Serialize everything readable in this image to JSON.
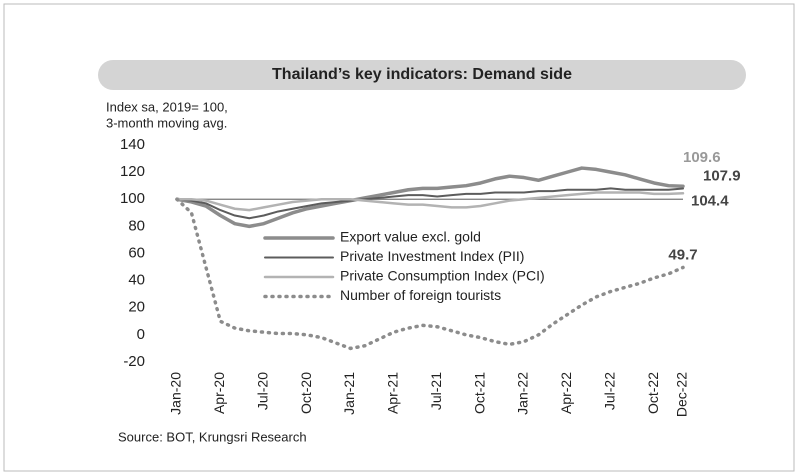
{
  "chart_data": {
    "type": "line",
    "title": "Thailand’s key indicators: Demand side",
    "ylabel": [
      "Index sa, 2019= 100,",
      "3-month moving avg."
    ],
    "source": "Source: BOT, Krungsri Research",
    "categories": [
      "Jan-20",
      null,
      null,
      "Apr-20",
      null,
      null,
      "Jul-20",
      null,
      null,
      "Oct-20",
      null,
      null,
      "Jan-21",
      null,
      null,
      "Apr-21",
      null,
      null,
      "Jul-21",
      null,
      null,
      "Oct-21",
      null,
      null,
      "Jan-22",
      null,
      null,
      "Apr-22",
      null,
      null,
      "Jul-22",
      null,
      null,
      "Oct-22",
      null,
      "Dec-22"
    ],
    "series": [
      {
        "name": "Export value excl. gold",
        "color": "#8c8c8c",
        "style": "solid",
        "values": [
          100,
          98,
          95,
          88,
          82,
          80,
          82,
          86,
          90,
          93,
          95,
          97,
          99,
          101,
          103,
          105,
          107,
          108,
          108,
          109,
          110,
          112,
          115,
          117,
          116,
          114,
          117,
          120,
          123,
          122,
          120,
          118,
          115,
          112,
          110,
          109.6
        ]
      },
      {
        "name": "Private Investment Index (PII)",
        "color": "#5c5c5c",
        "style": "solid",
        "values": [
          100,
          99,
          97,
          92,
          88,
          86,
          88,
          91,
          93,
          95,
          97,
          98,
          99,
          100,
          101,
          102,
          103,
          103,
          102,
          103,
          104,
          104,
          105,
          105,
          105,
          106,
          106,
          107,
          107,
          107,
          108,
          107,
          107,
          107,
          107,
          107.9
        ]
      },
      {
        "name": "Private Consumption Index (PCI)",
        "color": "#b3b3b3",
        "style": "solid",
        "values": [
          100,
          100,
          99,
          96,
          93,
          92,
          94,
          96,
          98,
          99,
          100,
          100,
          100,
          99,
          98,
          97,
          96,
          96,
          95,
          94,
          94,
          95,
          97,
          99,
          100,
          101,
          102,
          103,
          104,
          105,
          105,
          105,
          105,
          104,
          104,
          104.4
        ]
      },
      {
        "name": "Number of foreign tourists",
        "color": "#8c8c8c",
        "style": "dotted",
        "values": [
          100,
          90,
          50,
          10,
          5,
          3,
          2,
          1,
          1,
          0,
          -2,
          -6,
          -10,
          -8,
          -3,
          2,
          5,
          7,
          6,
          3,
          0,
          -2,
          -5,
          -7,
          -5,
          0,
          8,
          15,
          22,
          28,
          32,
          35,
          38,
          42,
          45,
          49.7
        ]
      }
    ],
    "reference_line": 100,
    "ylim": [
      -20,
      140
    ],
    "yticks": [
      -20,
      0,
      20,
      40,
      60,
      80,
      100,
      120,
      140
    ]
  }
}
